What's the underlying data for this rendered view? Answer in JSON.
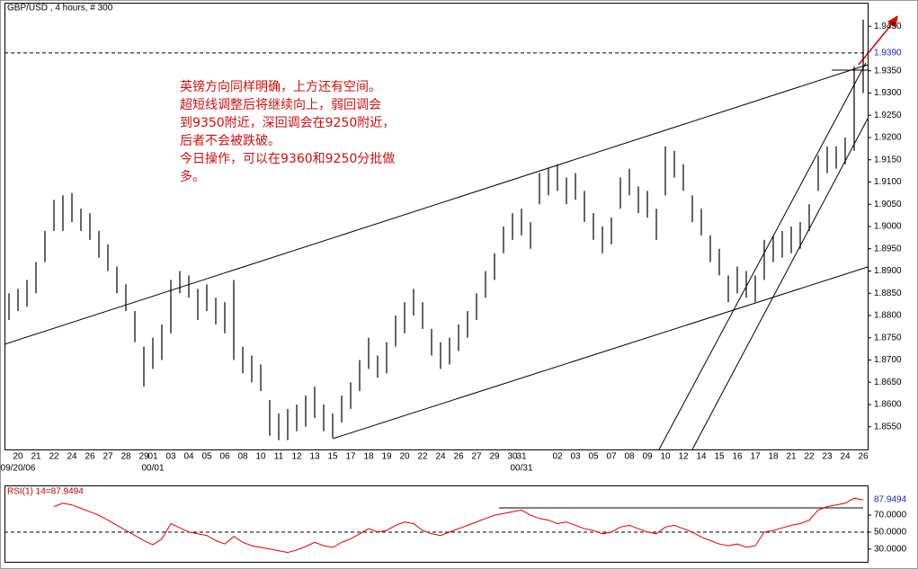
{
  "chart_data": [
    {
      "type": "ohlc",
      "title": "GBP/USD , 4 hours, # 300",
      "annotation": [
        "英镑方向同样明确，上方还有空间。",
        "超短线调整后将继续向上，弱回调会",
        "到9350附近，深回调会在9250附近，",
        "后者不会被跌破。",
        "今日操作，可以在9360和9250分批做",
        "多。"
      ],
      "annotation_color": "#d01010",
      "color": "#000000",
      "categories": [
        null,
        "20",
        null,
        "21",
        null,
        "22",
        null,
        "24",
        null,
        "26",
        null,
        "27",
        null,
        "28",
        null,
        "29",
        "01",
        null,
        "03",
        null,
        "04",
        null,
        "05",
        null,
        "06",
        null,
        "08",
        null,
        "10",
        null,
        "11",
        null,
        "12",
        null,
        "13",
        null,
        "15",
        null,
        "17",
        null,
        "18",
        null,
        "19",
        null,
        "20",
        null,
        "22",
        null,
        "24",
        null,
        "26",
        null,
        "27",
        null,
        "29",
        null,
        "30",
        "31",
        null,
        null,
        null,
        "02",
        null,
        "03",
        null,
        "05",
        null,
        "07",
        null,
        "08",
        null,
        "09",
        null,
        "10",
        null,
        "12",
        null,
        "14",
        null,
        "15",
        null,
        "16",
        null,
        "17",
        null,
        "18",
        null,
        "21",
        null,
        "22",
        null,
        "23",
        null,
        "24",
        null,
        "26"
      ],
      "sublabels": [
        null,
        "09/20/06",
        null,
        null,
        null,
        null,
        null,
        null,
        null,
        null,
        null,
        null,
        null,
        null,
        null,
        null,
        "00/01",
        null,
        null,
        null,
        null,
        null,
        null,
        null,
        null,
        null,
        null,
        null,
        null,
        null,
        null,
        null,
        null,
        null,
        null,
        null,
        null,
        null,
        null,
        null,
        null,
        null,
        null,
        null,
        null,
        null,
        null,
        null,
        null,
        null,
        null,
        null,
        null,
        null,
        null,
        null,
        null,
        "00/31",
        null,
        null,
        null,
        null,
        null,
        null,
        null,
        null,
        null,
        null,
        null,
        null,
        null,
        null,
        null,
        null,
        null,
        null,
        null,
        null,
        null,
        null,
        null,
        null,
        null,
        null,
        null,
        null,
        null,
        null,
        null,
        null,
        null,
        null,
        null,
        null,
        null,
        null
      ],
      "high": [
        1.885,
        1.886,
        1.888,
        1.892,
        1.899,
        1.906,
        1.907,
        1.9075,
        1.904,
        1.903,
        1.899,
        1.896,
        1.891,
        1.887,
        1.881,
        1.873,
        1.875,
        1.878,
        1.888,
        1.89,
        1.889,
        1.886,
        1.887,
        1.884,
        1.883,
        1.888,
        1.873,
        1.871,
        1.869,
        1.861,
        1.858,
        1.859,
        1.86,
        1.862,
        1.864,
        1.86,
        1.858,
        1.862,
        1.865,
        1.87,
        1.875,
        1.871,
        1.874,
        1.88,
        1.883,
        1.886,
        1.883,
        1.877,
        1.874,
        1.875,
        1.878,
        1.881,
        1.885,
        1.89,
        1.894,
        1.9,
        1.903,
        1.904,
        1.901,
        1.912,
        1.913,
        1.914,
        1.911,
        1.912,
        1.908,
        1.903,
        1.9,
        1.902,
        1.911,
        1.913,
        1.909,
        1.908,
        1.904,
        1.918,
        1.917,
        1.914,
        1.907,
        1.904,
        1.898,
        1.895,
        1.889,
        1.891,
        1.89,
        1.889,
        1.897,
        1.898,
        1.899,
        1.9,
        1.901,
        1.905,
        1.916,
        1.918,
        1.918,
        1.92,
        1.936,
        1.9465
      ],
      "low": [
        1.879,
        1.881,
        1.882,
        1.885,
        1.892,
        1.899,
        1.899,
        1.901,
        1.899,
        1.897,
        1.893,
        1.89,
        1.885,
        1.881,
        1.874,
        1.864,
        1.868,
        1.87,
        1.876,
        1.885,
        1.884,
        1.879,
        1.881,
        1.878,
        1.876,
        1.87,
        1.867,
        1.865,
        1.863,
        1.853,
        1.852,
        1.852,
        1.854,
        1.855,
        1.857,
        1.854,
        1.8525,
        1.856,
        1.859,
        1.863,
        1.868,
        1.866,
        1.867,
        1.873,
        1.876,
        1.88,
        1.877,
        1.871,
        1.868,
        1.869,
        1.872,
        1.875,
        1.879,
        1.884,
        1.888,
        1.894,
        1.897,
        1.898,
        1.895,
        1.905,
        1.907,
        1.908,
        1.905,
        1.906,
        1.901,
        1.897,
        1.894,
        1.896,
        1.904,
        1.907,
        1.903,
        1.902,
        1.897,
        1.907,
        1.911,
        1.908,
        1.901,
        1.898,
        1.892,
        1.889,
        1.883,
        1.885,
        1.884,
        1.883,
        1.888,
        1.892,
        1.893,
        1.894,
        1.895,
        1.899,
        1.908,
        1.912,
        1.913,
        1.914,
        1.917,
        1.93
      ],
      "ylim": [
        1.8499,
        1.9503
      ],
      "yticks": [
        {
          "value": 1.855,
          "label": "1.8550"
        },
        {
          "value": 1.86,
          "label": "1.8600"
        },
        {
          "value": 1.865,
          "label": "1.8650"
        },
        {
          "value": 1.87,
          "label": "1.8700"
        },
        {
          "value": 1.875,
          "label": "1.8750"
        },
        {
          "value": 1.88,
          "label": "1.8800"
        },
        {
          "value": 1.885,
          "label": "1.8850"
        },
        {
          "value": 1.89,
          "label": "1.8900"
        },
        {
          "value": 1.895,
          "label": "1.8950"
        },
        {
          "value": 1.9,
          "label": "1.9000"
        },
        {
          "value": 1.905,
          "label": "1.9050"
        },
        {
          "value": 1.91,
          "label": "1.9100"
        },
        {
          "value": 1.915,
          "label": "1.9150"
        },
        {
          "value": 1.92,
          "label": "1.9200"
        },
        {
          "value": 1.925,
          "label": "1.9250"
        },
        {
          "value": 1.93,
          "label": "1.9300"
        },
        {
          "value": 1.935,
          "label": "1.9350"
        },
        {
          "value": 1.945,
          "label": "1.9450"
        }
      ],
      "last_price": {
        "value": 1.939,
        "label": "1.9390"
      },
      "last_price_color": "#2020c0"
    },
    {
      "type": "line",
      "title": "RSI(1) 14=87.9494",
      "color": "#e00000",
      "values": [
        null,
        null,
        null,
        null,
        null,
        80,
        84,
        82,
        78,
        74,
        70,
        64,
        58,
        52,
        46,
        40,
        35,
        42,
        60,
        55,
        50,
        48,
        46,
        40,
        36,
        45,
        38,
        34,
        32,
        30,
        28,
        26,
        29,
        33,
        38,
        34,
        32,
        38,
        42,
        48,
        54,
        50,
        52,
        58,
        62,
        60,
        52,
        48,
        46,
        50,
        54,
        58,
        62,
        66,
        70,
        72,
        74,
        76,
        70,
        66,
        64,
        60,
        62,
        58,
        54,
        52,
        48,
        50,
        56,
        58,
        54,
        50,
        48,
        56,
        58,
        54,
        50,
        44,
        40,
        36,
        34,
        36,
        32,
        34,
        50,
        52,
        55,
        58,
        60,
        64,
        76,
        80,
        82,
        84,
        90,
        87.9494
      ],
      "ylim": [
        15,
        105
      ],
      "yticks": [
        {
          "value": 30,
          "label": "30.0000"
        },
        {
          "value": 50,
          "label": "50.0000"
        },
        {
          "value": 70,
          "label": "70.0000"
        }
      ],
      "current_value": 87.9494,
      "current_color": "#2020c0",
      "reference_line": 50
    }
  ]
}
